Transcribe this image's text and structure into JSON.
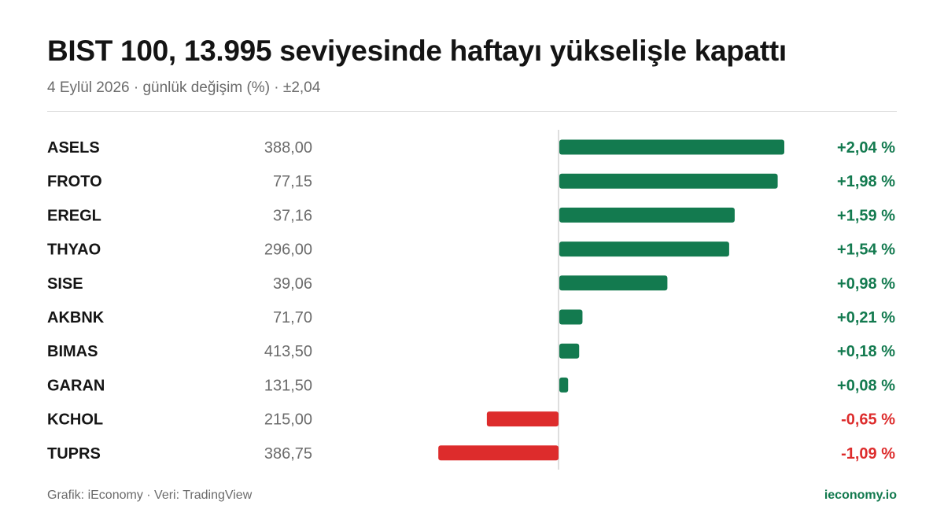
{
  "header": {
    "title": "BIST 100, 13.995 seviyesinde haftayı yükselişle kapattı",
    "subtitle": "4 Eylül 2026 · günlük değişim (%) · ±2,04"
  },
  "footer": {
    "credit": "Grafik: iEconomy · Veri: TradingView",
    "brand": "ieconomy.io"
  },
  "colors": {
    "positive": "#137a4f",
    "negative": "#dd2c2c",
    "brand": "#137a4f"
  },
  "chart_data": {
    "type": "bar",
    "orientation": "horizontal",
    "categories": [
      "ASELS",
      "FROTO",
      "EREGL",
      "THYAO",
      "SISE",
      "AKBNK",
      "BIMAS",
      "GARAN",
      "KCHOL",
      "TUPRS"
    ],
    "prices": [
      "388,00",
      "77,15",
      "37,16",
      "296,00",
      "39,06",
      "71,70",
      "413,50",
      "131,50",
      "215,00",
      "386,75"
    ],
    "values": [
      2.04,
      1.98,
      1.59,
      1.54,
      0.98,
      0.21,
      0.18,
      0.08,
      -0.65,
      -1.09
    ],
    "value_labels": [
      "+2,04 %",
      "+1,98 %",
      "+1,59 %",
      "+1,54 %",
      "+0,98 %",
      "+0,21 %",
      "+0,18 %",
      "+0,08 %",
      "-0,65 %",
      "-1,09 %"
    ],
    "xlim": [
      -2.04,
      2.04
    ],
    "grid": false,
    "title": "",
    "xlabel": "",
    "ylabel": ""
  }
}
